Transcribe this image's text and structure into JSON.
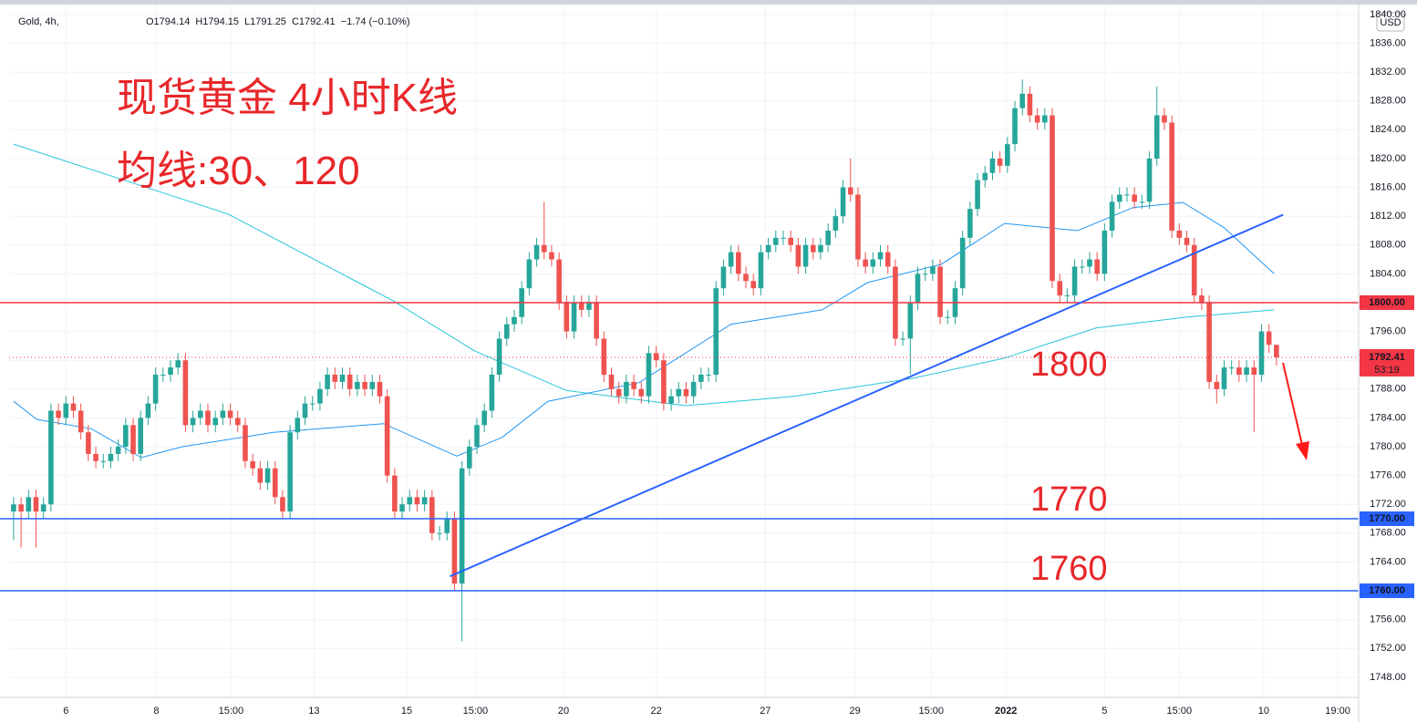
{
  "chart_data": {
    "type": "candlestick",
    "header": {
      "symbol": "Gold, 4h,",
      "fields": [
        "O1794.14",
        "H1794.15",
        "L1791.25",
        "C1792.41",
        "−1.74 (−0.10%)"
      ]
    },
    "title": "现货黄金 4小时K线",
    "subtitle": "均线:30、120",
    "currency": "USD",
    "up_color": "#26a69a",
    "down_color": "#ef5350",
    "grid": true,
    "xlim": [
      -0.6,
      180
    ],
    "ylim": [
      1745.2,
      1841
    ],
    "yticks": [
      {
        "value": 1748,
        "label": "1748.00"
      },
      {
        "value": 1752,
        "label": "1752.00"
      },
      {
        "value": 1756,
        "label": "1756.00"
      },
      {
        "value": 1760,
        "label": "1760.00"
      },
      {
        "value": 1764,
        "label": "1764.00"
      },
      {
        "value": 1768,
        "label": "1768.00"
      },
      {
        "value": 1772,
        "label": "1772.00"
      },
      {
        "value": 1776,
        "label": "1776.00"
      },
      {
        "value": 1780,
        "label": "1780.00"
      },
      {
        "value": 1784,
        "label": "1784.00"
      },
      {
        "value": 1788,
        "label": "1788.00"
      },
      {
        "value": 1792,
        "label": "1792.00"
      },
      {
        "value": 1796,
        "label": "1796.00"
      },
      {
        "value": 1800,
        "label": "1800.00"
      },
      {
        "value": 1804,
        "label": "1804.00"
      },
      {
        "value": 1808,
        "label": "1808.00"
      },
      {
        "value": 1812,
        "label": "1812.00"
      },
      {
        "value": 1816,
        "label": "1816.00"
      },
      {
        "value": 1820,
        "label": "1820.00"
      },
      {
        "value": 1824,
        "label": "1824.00"
      },
      {
        "value": 1828,
        "label": "1828.00"
      },
      {
        "value": 1832,
        "label": "1832.00"
      },
      {
        "value": 1836,
        "label": "1836.00"
      },
      {
        "value": 1840,
        "label": "1840.00"
      }
    ],
    "xticks": [
      {
        "value": 7,
        "label": "6"
      },
      {
        "value": 19.1,
        "label": "8"
      },
      {
        "value": 29.1,
        "label": "15:00"
      },
      {
        "value": 40.2,
        "label": "13"
      },
      {
        "value": 52.6,
        "label": "15"
      },
      {
        "value": 61.8,
        "label": "15:00"
      },
      {
        "value": 73.6,
        "label": "20"
      },
      {
        "value": 86,
        "label": "22"
      },
      {
        "value": 100.6,
        "label": "27"
      },
      {
        "value": 112.6,
        "label": "29"
      },
      {
        "value": 122.8,
        "label": "15:00"
      },
      {
        "value": 132.8,
        "label": "2022"
      },
      {
        "value": 146,
        "label": "5"
      },
      {
        "value": 156,
        "label": "15:00"
      },
      {
        "value": 167.3,
        "label": "10"
      },
      {
        "value": 177.2,
        "label": "19:00"
      }
    ],
    "open": [
      1771,
      1772,
      1771,
      1773,
      1771,
      1772,
      1785,
      1784,
      1786,
      1785,
      1782,
      1779,
      1778,
      1778,
      1779,
      1780,
      1783,
      1779,
      1784,
      1786,
      1790,
      1790,
      1791,
      1792,
      1783,
      1784,
      1785,
      1783,
      1784,
      1785,
      1784,
      1783,
      1778,
      1777,
      1775,
      1777,
      1773,
      1771,
      1782,
      1784,
      1786,
      1786,
      1788,
      1790,
      1789,
      1790,
      1788,
      1789,
      1788,
      1789,
      1787,
      1776,
      1771,
      1772,
      1773,
      1772,
      1773,
      1768,
      1768,
      1770,
      1761,
      1777,
      1780,
      1783,
      1785,
      1790,
      1795,
      1797,
      1798,
      1802,
      1806,
      1808,
      1807,
      1806,
      1800,
      1796,
      1800,
      1799,
      1800,
      1795,
      1790,
      1788,
      1787,
      1789,
      1788,
      1787,
      1793,
      1792,
      1786,
      1787,
      1788,
      1787,
      1789,
      1790,
      1790,
      1802,
      1805,
      1807,
      1804,
      1803,
      1802,
      1807,
      1808,
      1809,
      1809,
      1808,
      1805,
      1808,
      1807,
      1808,
      1810,
      1812,
      1816,
      1815,
      1806,
      1805,
      1806,
      1807,
      1805,
      1795,
      1795,
      1800,
      1804,
      1804,
      1805,
      1798,
      1798,
      1802,
      1809,
      1813,
      1817,
      1818,
      1820,
      1819,
      1822,
      1827,
      1829,
      1826,
      1825,
      1826,
      1803,
      1801,
      1801,
      1805,
      1805,
      1806,
      1804,
      1810,
      1814,
      1815,
      1815,
      1814,
      1814,
      1820,
      1826,
      1825,
      1810,
      1809,
      1808,
      1801,
      1800,
      1789,
      1788,
      1791,
      1791,
      1790,
      1791,
      1790,
      1796,
      1794.14
    ],
    "high": [
      1773,
      1773,
      1774,
      1774,
      1773,
      1786,
      1786,
      1787,
      1787,
      1786,
      1783,
      1780,
      1779,
      1780,
      1781,
      1784,
      1784,
      1785,
      1787,
      1791,
      1791,
      1792,
      1793,
      1793,
      1785,
      1786,
      1786,
      1785,
      1786,
      1786,
      1785,
      1784,
      1779,
      1778,
      1778,
      1778,
      1774,
      1783,
      1785,
      1787,
      1787,
      1789,
      1791,
      1791,
      1791,
      1791,
      1790,
      1790,
      1790,
      1790,
      1788,
      1777,
      1773,
      1774,
      1774,
      1774,
      1774,
      1769,
      1771,
      1771,
      1778,
      1781,
      1784,
      1786,
      1791,
      1796,
      1798,
      1799,
      1803,
      1807,
      1809,
      1814,
      1808,
      1807,
      1801,
      1801,
      1801,
      1801,
      1801,
      1796,
      1791,
      1789,
      1790,
      1790,
      1789,
      1794,
      1794,
      1793,
      1788,
      1789,
      1789,
      1790,
      1791,
      1791,
      1803,
      1806,
      1808,
      1808,
      1805,
      1804,
      1808,
      1809,
      1810,
      1810,
      1810,
      1809,
      1809,
      1809,
      1809,
      1811,
      1813,
      1817,
      1820,
      1816,
      1807,
      1807,
      1808,
      1808,
      1806,
      1796,
      1801,
      1805,
      1805,
      1806,
      1806,
      1799,
      1803,
      1810,
      1814,
      1818,
      1819,
      1821,
      1821,
      1823,
      1828,
      1831,
      1830,
      1827,
      1827,
      1827,
      1804,
      1802,
      1806,
      1806,
      1807,
      1807,
      1811,
      1815,
      1816,
      1816,
      1816,
      1815,
      1821,
      1830,
      1827,
      1826,
      1811,
      1810,
      1809,
      1802,
      1801,
      1790,
      1792,
      1792,
      1792,
      1792,
      1792,
      1797,
      1797,
      1794.15
    ],
    "low": [
      1767,
      1766,
      1770,
      1766,
      1770,
      1771,
      1783,
      1783,
      1784,
      1781,
      1778,
      1777,
      1777,
      1777,
      1778,
      1779,
      1778,
      1778,
      1783,
      1785,
      1789,
      1789,
      1790,
      1782,
      1782,
      1783,
      1782,
      1782,
      1783,
      1783,
      1782,
      1777,
      1776,
      1774,
      1774,
      1772,
      1770,
      1770,
      1781,
      1783,
      1785,
      1785,
      1787,
      1788,
      1788,
      1787,
      1787,
      1787,
      1787,
      1786,
      1775,
      1770,
      1770,
      1771,
      1771,
      1771,
      1767,
      1767,
      1767,
      1760,
      1753,
      1776,
      1779,
      1782,
      1784,
      1789,
      1794,
      1796,
      1797,
      1801,
      1805,
      1806,
      1805,
      1799,
      1795,
      1795,
      1798,
      1798,
      1794,
      1789,
      1787,
      1786,
      1786,
      1787,
      1786,
      1786,
      1791,
      1785,
      1785,
      1786,
      1786,
      1786,
      1788,
      1789,
      1789,
      1801,
      1804,
      1803,
      1802,
      1801,
      1801,
      1806,
      1807,
      1808,
      1807,
      1804,
      1804,
      1806,
      1806,
      1807,
      1809,
      1811,
      1814,
      1805,
      1804,
      1804,
      1805,
      1804,
      1794,
      1794,
      1790,
      1799,
      1803,
      1803,
      1797,
      1797,
      1797,
      1801,
      1808,
      1812,
      1816,
      1817,
      1818,
      1818,
      1821,
      1826,
      1825,
      1824,
      1824,
      1802,
      1800,
      1800,
      1800,
      1804,
      1804,
      1803,
      1803,
      1809,
      1813,
      1814,
      1813,
      1813,
      1813,
      1819,
      1824,
      1809,
      1808,
      1807,
      1800,
      1799,
      1788,
      1786,
      1787,
      1790,
      1789,
      1789,
      1782,
      1789,
      1793,
      1791.25
    ],
    "close": [
      1772,
      1771,
      1773,
      1771,
      1772,
      1785,
      1784,
      1786,
      1785,
      1782,
      1779,
      1778,
      1778,
      1779,
      1780,
      1783,
      1779,
      1784,
      1786,
      1790,
      1790,
      1791,
      1792,
      1783,
      1784,
      1785,
      1783,
      1784,
      1785,
      1784,
      1783,
      1778,
      1777,
      1775,
      1777,
      1773,
      1771,
      1782,
      1784,
      1786,
      1786,
      1788,
      1790,
      1789,
      1790,
      1788,
      1789,
      1788,
      1789,
      1787,
      1776,
      1771,
      1772,
      1773,
      1772,
      1773,
      1768,
      1768,
      1770,
      1761,
      1777,
      1780,
      1783,
      1785,
      1790,
      1795,
      1797,
      1798,
      1802,
      1806,
      1808,
      1807,
      1806,
      1800,
      1796,
      1800,
      1799,
      1800,
      1795,
      1790,
      1788,
      1787,
      1789,
      1788,
      1787,
      1793,
      1792,
      1786,
      1787,
      1788,
      1787,
      1789,
      1790,
      1790,
      1802,
      1805,
      1807,
      1804,
      1803,
      1802,
      1807,
      1808,
      1809,
      1809,
      1808,
      1805,
      1808,
      1807,
      1808,
      1810,
      1812,
      1816,
      1815,
      1806,
      1805,
      1806,
      1807,
      1805,
      1795,
      1795,
      1800,
      1804,
      1804,
      1805,
      1798,
      1798,
      1802,
      1809,
      1813,
      1817,
      1818,
      1820,
      1819,
      1822,
      1827,
      1829,
      1826,
      1825,
      1826,
      1803,
      1801,
      1801,
      1805,
      1805,
      1806,
      1804,
      1810,
      1814,
      1815,
      1815,
      1814,
      1814,
      1820,
      1826,
      1825,
      1810,
      1809,
      1808,
      1801,
      1800,
      1789,
      1788,
      1791,
      1791,
      1790,
      1791,
      1790,
      1796,
      1794.14,
      1792.41
    ],
    "moving_averages": [
      {
        "color": "#26c6da",
        "x": [
          0,
          28.7,
          50.7,
          61.7,
          74,
          89.9,
          104.5,
          120.4,
          132.6,
          144.9,
          157.1,
          168.7
        ],
        "values": [
          1822,
          1812.3,
          1800.3,
          1793.3,
          1787.8,
          1785.7,
          1787,
          1789.5,
          1792.3,
          1796.5,
          1798,
          1799
        ]
      },
      {
        "color": "#2196f3",
        "x": [
          0,
          3.1,
          10.4,
          17.1,
          22.6,
          34.8,
          49.5,
          59.3,
          65.4,
          71.5,
          83.7,
          96,
          108.2,
          114.3,
          124.1,
          132.6,
          142.4,
          149.8,
          156.5,
          162,
          168.7
        ],
        "values": [
          1786.3,
          1783.8,
          1782.5,
          1778.5,
          1780,
          1782,
          1783.2,
          1778.7,
          1781.3,
          1786.3,
          1788.9,
          1797,
          1799,
          1802.8,
          1805.3,
          1811,
          1810,
          1813.2,
          1813.9,
          1810.4,
          1804
        ]
      }
    ],
    "trendline": {
      "color": "#2962ff",
      "x": [
        58.4,
        169.9
      ],
      "values": [
        1762,
        1812.2
      ]
    },
    "hlines": [
      {
        "value": 1800,
        "label": "1800.00",
        "color": "#f23645"
      },
      {
        "value": 1770,
        "label": "1770.00",
        "color": "#2962ff"
      },
      {
        "value": 1760,
        "label": "1760.00",
        "color": "#2962ff"
      }
    ],
    "last": {
      "value": 1792.41,
      "label": "1792.41",
      "countdown": "53:19",
      "color": "#f23645"
    },
    "annotations": [
      "1800",
      "1770",
      "1760"
    ]
  }
}
